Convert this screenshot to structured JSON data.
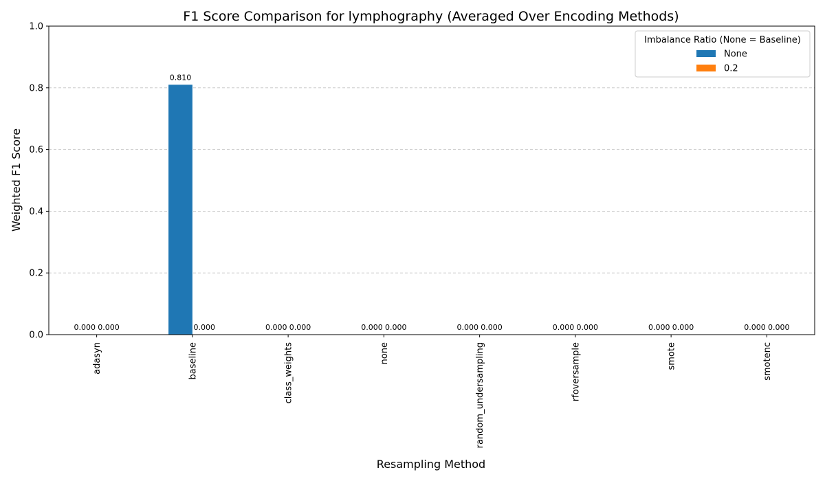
{
  "chart_data": {
    "type": "bar",
    "title": "F1 Score Comparison for lymphography (Averaged Over Encoding Methods)",
    "xlabel": "Resampling Method",
    "ylabel": "Weighted F1 Score",
    "ylim": [
      0,
      1
    ],
    "yticks": [
      "0.0",
      "0.2",
      "0.4",
      "0.6",
      "0.8",
      "1.0"
    ],
    "ytick_values": [
      0,
      0.2,
      0.4,
      0.6,
      0.8,
      1.0
    ],
    "grid": "y-dashed",
    "legend": {
      "title": "Imbalance Ratio (None = Baseline)",
      "placement": "top-right"
    },
    "categories": [
      "adasyn",
      "baseline",
      "class_weights",
      "none",
      "random_undersampling",
      "rfoversample",
      "smote",
      "smotenc"
    ],
    "series": [
      {
        "name": "None",
        "color": "#1f77b4",
        "values": [
          0,
          0.81,
          0,
          0,
          0,
          0,
          0,
          0
        ],
        "labels": [
          "0.000",
          "0.810",
          "0.000",
          "0.000",
          "0.000",
          "0.000",
          "0.000",
          "0.000"
        ]
      },
      {
        "name": "0.2",
        "color": "#ff7f0e",
        "values": [
          0,
          0,
          0,
          0,
          0,
          0,
          0,
          0
        ],
        "labels": [
          "0.000",
          "0.000",
          "0.000",
          "0.000",
          "0.000",
          "0.000",
          "0.000",
          "0.000"
        ]
      }
    ]
  }
}
